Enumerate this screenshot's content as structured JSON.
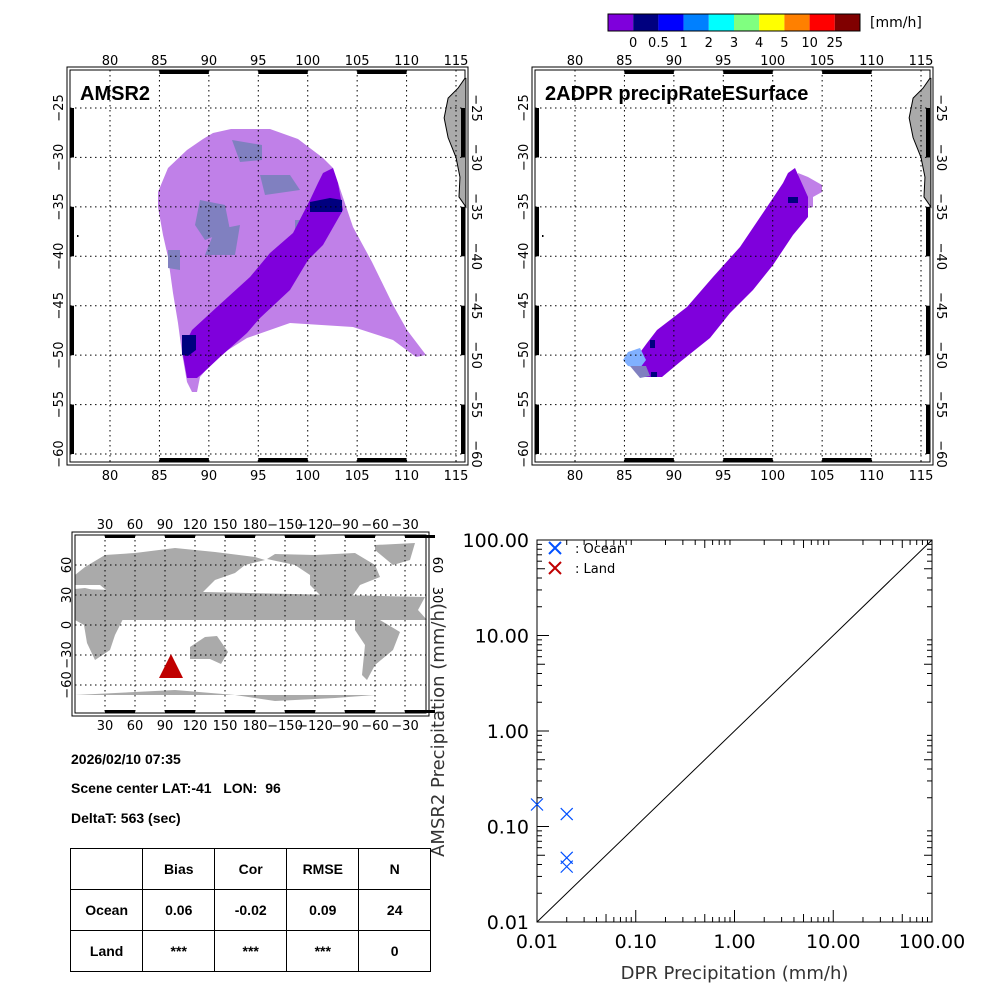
{
  "colorbar": {
    "colors": [
      "#7f00dc",
      "#00007f",
      "#0000ff",
      "#0080ff",
      "#00ffff",
      "#80ff80",
      "#ffff00",
      "#ff8000",
      "#ff0000",
      "#800000"
    ],
    "labels": [
      "0",
      "0.5",
      "1",
      "2",
      "3",
      "4",
      "5",
      "10",
      "25"
    ],
    "unit": "[mm/h]"
  },
  "map_amsr2": {
    "title": "AMSR2"
  },
  "map_dpr": {
    "title": "2ADPR precipRateESurface"
  },
  "map_axes": {
    "lon_ticks": [
      "80",
      "85",
      "90",
      "95",
      "100",
      "105",
      "110",
      "115"
    ],
    "lat_ticks": [
      "−25",
      "−30",
      "−35",
      "−40",
      "−45",
      "−50",
      "−55",
      "−60"
    ]
  },
  "world_map": {
    "lon_ticks": [
      "30",
      "60",
      "90",
      "120",
      "150",
      "180",
      "−150",
      "−120",
      "−90",
      "−60",
      "−30"
    ],
    "lat_ticks": [
      "60",
      "30",
      "0",
      "−30",
      "−60"
    ],
    "marker": {
      "lat": -41,
      "lon": 96,
      "color": "#c00000"
    }
  },
  "info": {
    "datetime": "2026/02/10 07:35",
    "scene_center": "Scene center LAT:-41   LON:  96",
    "deltat": "DeltaT:  563 (sec)"
  },
  "stats_table": {
    "headers": [
      "",
      "Bias",
      "Cor",
      "RMSE",
      "N"
    ],
    "rows": [
      [
        "Ocean",
        "0.06",
        "-0.02",
        "0.09",
        "24"
      ],
      [
        "Land",
        "***",
        "***",
        "***",
        "0"
      ]
    ]
  },
  "chart_data": {
    "type": "scatter",
    "xlabel": "DPR Precipitation (mm/h)",
    "ylabel": "AMSR2 Precipitation (mm/h)",
    "xscale": "log",
    "yscale": "log",
    "xlim": [
      0.01,
      100
    ],
    "ylim": [
      0.01,
      100
    ],
    "x_tick_labels": [
      "0.01",
      "0.10",
      "1.00",
      "10.00",
      "100.00"
    ],
    "y_tick_labels": [
      "0.01",
      "0.10",
      "1.00",
      "10.00",
      "100.00"
    ],
    "legend": [
      {
        "label": ": Ocean",
        "color": "#0050ff"
      },
      {
        "label": ": Land",
        "color": "#c00000"
      }
    ],
    "legend_position": "top-left",
    "one_to_one_line": true,
    "series": [
      {
        "name": "Ocean",
        "color": "#0050ff",
        "points": [
          [
            0.01,
            0.17
          ],
          [
            0.02,
            0.135
          ],
          [
            0.02,
            0.047
          ],
          [
            0.02,
            0.038
          ]
        ]
      },
      {
        "name": "Land",
        "color": "#c00000",
        "points": []
      }
    ]
  }
}
